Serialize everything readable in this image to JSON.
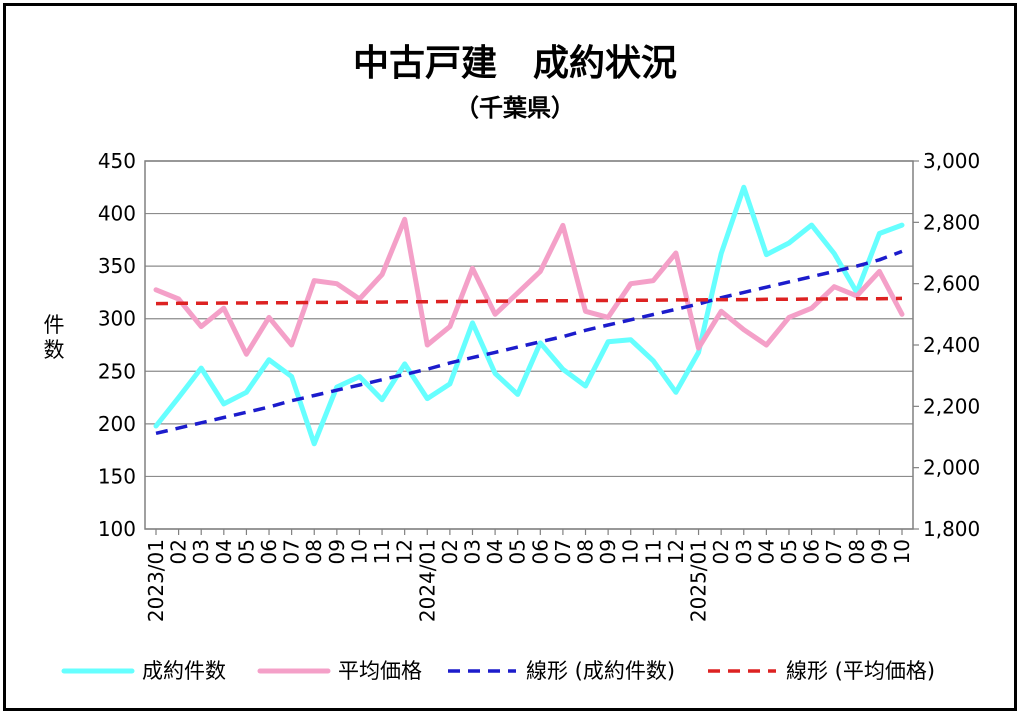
{
  "chart_data": {
    "type": "line",
    "title": "中古戸建　成約状況",
    "subtitle": "（千葉県）",
    "ylabel": "件数",
    "ylabel_right": "",
    "ylim": [
      100,
      450
    ],
    "ylim_right": [
      1800,
      3000
    ],
    "yticks": [
      "100",
      "150",
      "200",
      "250",
      "300",
      "350",
      "400",
      "450"
    ],
    "yticks_right": [
      "1,800",
      "2,000",
      "2,200",
      "2,400",
      "2,600",
      "2,800",
      "3,000"
    ],
    "grid": true,
    "legend_position": "bottom",
    "categories": [
      "2023/01",
      "02",
      "03",
      "04",
      "05",
      "06",
      "07",
      "08",
      "09",
      "10",
      "11",
      "12",
      "2024/01",
      "02",
      "03",
      "04",
      "05",
      "06",
      "07",
      "08",
      "09",
      "10",
      "11",
      "12",
      "2025/01",
      "02",
      "03",
      "04",
      "05",
      "06",
      "07",
      "08",
      "09",
      "10"
    ],
    "series": [
      {
        "name": "成約件数",
        "axis": "left",
        "color": "#66ffff",
        "style": "solid",
        "values": [
          198,
          225,
          253,
          219,
          230,
          261,
          245,
          181,
          235,
          245,
          223,
          257,
          224,
          238,
          296,
          248,
          228,
          277,
          252,
          236,
          278,
          280,
          260,
          230,
          268,
          362,
          425,
          361,
          372,
          389,
          362,
          325,
          381,
          389
        ]
      },
      {
        "name": "平均価格",
        "axis": "right",
        "color": "#f4a0c8",
        "style": "solid",
        "values": [
          2580,
          2550,
          2460,
          2520,
          2370,
          2490,
          2400,
          2610,
          2600,
          2550,
          2630,
          2810,
          2400,
          2460,
          2650,
          2500,
          2570,
          2640,
          2790,
          2510,
          2490,
          2600,
          2610,
          2700,
          2390,
          2510,
          2450,
          2400,
          2490,
          2520,
          2590,
          2560,
          2640,
          2500
        ]
      },
      {
        "name": "線形 (成約件数)",
        "axis": "left",
        "color": "#1c1ccc",
        "style": "dashed",
        "values": [
          191,
          196,
          201,
          206,
          211,
          216,
          222,
          227,
          232,
          237,
          242,
          247,
          252,
          258,
          263,
          268,
          273,
          278,
          283,
          289,
          294,
          299,
          304,
          309,
          314,
          320,
          325,
          330,
          335,
          340,
          345,
          350,
          356,
          364
        ]
      },
      {
        "name": "線形 (平均価格)",
        "axis": "right",
        "color": "#dd2222",
        "style": "dashed",
        "values": [
          2535,
          2536,
          2536,
          2537,
          2537,
          2538,
          2538,
          2539,
          2539,
          2540,
          2540,
          2541,
          2541,
          2542,
          2542,
          2543,
          2543,
          2544,
          2544,
          2545,
          2545,
          2546,
          2546,
          2547,
          2547,
          2548,
          2548,
          2549,
          2549,
          2550,
          2550,
          2551,
          2551,
          2552
        ]
      }
    ]
  }
}
